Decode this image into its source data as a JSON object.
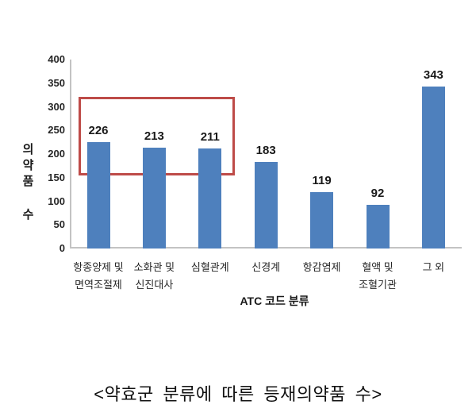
{
  "caption": "<약효군 분류에 따른 등재의약품 수>",
  "chart_data": {
    "type": "bar",
    "title": "",
    "categories": [
      "항종양제 및\n면역조절제",
      "소화관 및\n신진대사",
      "심혈관계",
      "신경계",
      "항감염제",
      "혈액 및\n조혈기관",
      "그 외"
    ],
    "values": [
      226,
      213,
      211,
      183,
      119,
      92,
      343
    ],
    "xlabel": "ATC 코드 분류",
    "ylabel": "의약품 수",
    "ylim": [
      0,
      400
    ],
    "yticks": [
      0,
      50,
      100,
      150,
      200,
      250,
      300,
      350,
      400
    ],
    "grid": false,
    "legend": false,
    "data_labels_shown": true,
    "bar_color": "#4e80bd",
    "axis_color": "#c3c3c3",
    "annotation": {
      "type": "highlight-rectangle",
      "color": "#be4b48",
      "covers_category_indices": [
        0,
        2
      ],
      "covers_values": [
        226,
        213,
        211
      ],
      "y_value_range": [
        155,
        321
      ]
    }
  }
}
